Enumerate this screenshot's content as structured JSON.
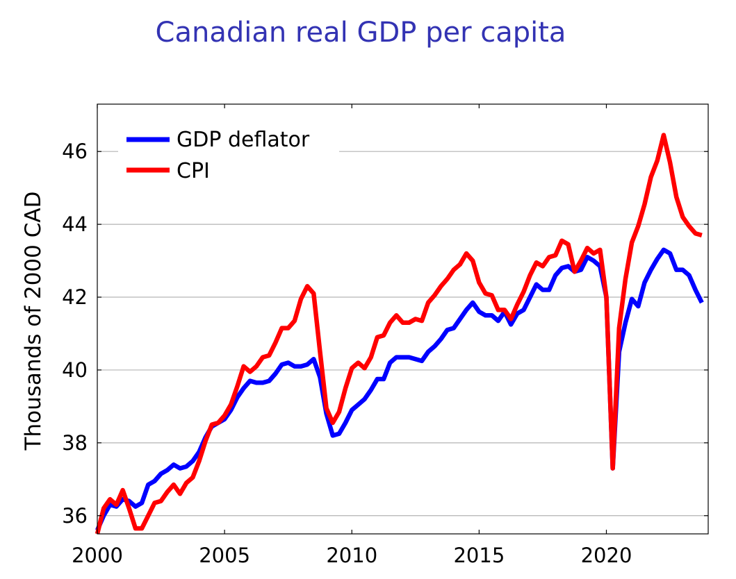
{
  "chart_data": {
    "type": "line",
    "title": "Canadian real GDP per capita",
    "xlabel": "",
    "ylabel": "Thousands of 2000 CAD",
    "xlim": [
      2000,
      2024
    ],
    "ylim": [
      35.5,
      47.3
    ],
    "x_ticks": [
      2000,
      2005,
      2010,
      2015,
      2020
    ],
    "x_tick_labels": [
      "2000",
      "2005",
      "2010",
      "2015",
      "2020"
    ],
    "y_ticks": [
      36,
      38,
      40,
      42,
      44,
      46
    ],
    "y_tick_labels": [
      "36",
      "38",
      "40",
      "42",
      "44",
      "46"
    ],
    "grid": "horizontal",
    "legend_position": "top-left",
    "series": [
      {
        "name": "GDP deflator",
        "color": "#0000ff",
        "points": [
          [
            2000.0,
            35.6
          ],
          [
            2000.25,
            36.0
          ],
          [
            2000.5,
            36.3
          ],
          [
            2000.75,
            36.25
          ],
          [
            2001.0,
            36.45
          ],
          [
            2001.25,
            36.4
          ],
          [
            2001.5,
            36.25
          ],
          [
            2001.75,
            36.35
          ],
          [
            2002.0,
            36.85
          ],
          [
            2002.25,
            36.95
          ],
          [
            2002.5,
            37.15
          ],
          [
            2002.75,
            37.25
          ],
          [
            2003.0,
            37.4
          ],
          [
            2003.25,
            37.3
          ],
          [
            2003.5,
            37.35
          ],
          [
            2003.75,
            37.5
          ],
          [
            2004.0,
            37.75
          ],
          [
            2004.25,
            38.15
          ],
          [
            2004.5,
            38.45
          ],
          [
            2004.75,
            38.55
          ],
          [
            2005.0,
            38.65
          ],
          [
            2005.25,
            38.9
          ],
          [
            2005.5,
            39.25
          ],
          [
            2005.75,
            39.5
          ],
          [
            2006.0,
            39.7
          ],
          [
            2006.25,
            39.65
          ],
          [
            2006.5,
            39.65
          ],
          [
            2006.75,
            39.7
          ],
          [
            2007.0,
            39.9
          ],
          [
            2007.25,
            40.15
          ],
          [
            2007.5,
            40.2
          ],
          [
            2007.75,
            40.1
          ],
          [
            2008.0,
            40.1
          ],
          [
            2008.25,
            40.15
          ],
          [
            2008.5,
            40.3
          ],
          [
            2008.75,
            39.8
          ],
          [
            2009.0,
            38.8
          ],
          [
            2009.25,
            38.2
          ],
          [
            2009.5,
            38.25
          ],
          [
            2009.75,
            38.55
          ],
          [
            2010.0,
            38.9
          ],
          [
            2010.25,
            39.05
          ],
          [
            2010.5,
            39.2
          ],
          [
            2010.75,
            39.45
          ],
          [
            2011.0,
            39.75
          ],
          [
            2011.25,
            39.75
          ],
          [
            2011.5,
            40.2
          ],
          [
            2011.75,
            40.35
          ],
          [
            2012.0,
            40.35
          ],
          [
            2012.25,
            40.35
          ],
          [
            2012.5,
            40.3
          ],
          [
            2012.75,
            40.25
          ],
          [
            2013.0,
            40.5
          ],
          [
            2013.25,
            40.65
          ],
          [
            2013.5,
            40.85
          ],
          [
            2013.75,
            41.1
          ],
          [
            2014.0,
            41.15
          ],
          [
            2014.25,
            41.4
          ],
          [
            2014.5,
            41.65
          ],
          [
            2014.75,
            41.85
          ],
          [
            2015.0,
            41.6
          ],
          [
            2015.25,
            41.5
          ],
          [
            2015.5,
            41.5
          ],
          [
            2015.75,
            41.35
          ],
          [
            2016.0,
            41.6
          ],
          [
            2016.25,
            41.25
          ],
          [
            2016.5,
            41.55
          ],
          [
            2016.75,
            41.65
          ],
          [
            2017.0,
            42.0
          ],
          [
            2017.25,
            42.35
          ],
          [
            2017.5,
            42.2
          ],
          [
            2017.75,
            42.2
          ],
          [
            2018.0,
            42.6
          ],
          [
            2018.25,
            42.8
          ],
          [
            2018.5,
            42.85
          ],
          [
            2018.75,
            42.7
          ],
          [
            2019.0,
            42.75
          ],
          [
            2019.25,
            43.1
          ],
          [
            2019.5,
            43.0
          ],
          [
            2019.75,
            42.85
          ],
          [
            2020.0,
            42.0
          ],
          [
            2020.25,
            37.3
          ],
          [
            2020.5,
            40.5
          ],
          [
            2020.75,
            41.3
          ],
          [
            2021.0,
            41.95
          ],
          [
            2021.25,
            41.75
          ],
          [
            2021.5,
            42.4
          ],
          [
            2021.75,
            42.75
          ],
          [
            2022.0,
            43.05
          ],
          [
            2022.25,
            43.3
          ],
          [
            2022.5,
            43.2
          ],
          [
            2022.75,
            42.75
          ],
          [
            2023.0,
            42.75
          ],
          [
            2023.25,
            42.6
          ],
          [
            2023.5,
            42.2
          ],
          [
            2023.75,
            41.85
          ]
        ]
      },
      {
        "name": "CPI",
        "color": "#ff0000",
        "points": [
          [
            2000.0,
            35.5
          ],
          [
            2000.25,
            36.2
          ],
          [
            2000.5,
            36.45
          ],
          [
            2000.75,
            36.3
          ],
          [
            2001.0,
            36.7
          ],
          [
            2001.25,
            36.2
          ],
          [
            2001.5,
            35.65
          ],
          [
            2001.75,
            35.65
          ],
          [
            2002.0,
            36.0
          ],
          [
            2002.25,
            36.35
          ],
          [
            2002.5,
            36.4
          ],
          [
            2002.75,
            36.65
          ],
          [
            2003.0,
            36.85
          ],
          [
            2003.25,
            36.6
          ],
          [
            2003.5,
            36.9
          ],
          [
            2003.75,
            37.05
          ],
          [
            2004.0,
            37.5
          ],
          [
            2004.25,
            38.05
          ],
          [
            2004.5,
            38.5
          ],
          [
            2004.75,
            38.55
          ],
          [
            2005.0,
            38.75
          ],
          [
            2005.25,
            39.05
          ],
          [
            2005.5,
            39.55
          ],
          [
            2005.75,
            40.1
          ],
          [
            2006.0,
            39.95
          ],
          [
            2006.25,
            40.1
          ],
          [
            2006.5,
            40.35
          ],
          [
            2006.75,
            40.4
          ],
          [
            2007.0,
            40.75
          ],
          [
            2007.25,
            41.15
          ],
          [
            2007.5,
            41.15
          ],
          [
            2007.75,
            41.35
          ],
          [
            2008.0,
            41.95
          ],
          [
            2008.25,
            42.3
          ],
          [
            2008.5,
            42.1
          ],
          [
            2008.75,
            40.5
          ],
          [
            2009.0,
            38.95
          ],
          [
            2009.25,
            38.55
          ],
          [
            2009.5,
            38.85
          ],
          [
            2009.75,
            39.5
          ],
          [
            2010.0,
            40.05
          ],
          [
            2010.25,
            40.2
          ],
          [
            2010.5,
            40.05
          ],
          [
            2010.75,
            40.35
          ],
          [
            2011.0,
            40.9
          ],
          [
            2011.25,
            40.95
          ],
          [
            2011.5,
            41.3
          ],
          [
            2011.75,
            41.5
          ],
          [
            2012.0,
            41.3
          ],
          [
            2012.25,
            41.3
          ],
          [
            2012.5,
            41.4
          ],
          [
            2012.75,
            41.35
          ],
          [
            2013.0,
            41.85
          ],
          [
            2013.25,
            42.05
          ],
          [
            2013.5,
            42.3
          ],
          [
            2013.75,
            42.5
          ],
          [
            2014.0,
            42.75
          ],
          [
            2014.25,
            42.9
          ],
          [
            2014.5,
            43.2
          ],
          [
            2014.75,
            43.0
          ],
          [
            2015.0,
            42.4
          ],
          [
            2015.25,
            42.1
          ],
          [
            2015.5,
            42.05
          ],
          [
            2015.75,
            41.65
          ],
          [
            2016.0,
            41.65
          ],
          [
            2016.25,
            41.4
          ],
          [
            2016.5,
            41.8
          ],
          [
            2016.75,
            42.15
          ],
          [
            2017.0,
            42.6
          ],
          [
            2017.25,
            42.95
          ],
          [
            2017.5,
            42.85
          ],
          [
            2017.75,
            43.1
          ],
          [
            2018.0,
            43.15
          ],
          [
            2018.25,
            43.55
          ],
          [
            2018.5,
            43.45
          ],
          [
            2018.75,
            42.7
          ],
          [
            2019.0,
            43.0
          ],
          [
            2019.25,
            43.35
          ],
          [
            2019.5,
            43.2
          ],
          [
            2019.75,
            43.3
          ],
          [
            2020.0,
            42.0
          ],
          [
            2020.25,
            37.3
          ],
          [
            2020.5,
            41.15
          ],
          [
            2020.75,
            42.5
          ],
          [
            2021.0,
            43.5
          ],
          [
            2021.25,
            43.95
          ],
          [
            2021.5,
            44.55
          ],
          [
            2021.75,
            45.3
          ],
          [
            2022.0,
            45.75
          ],
          [
            2022.25,
            46.45
          ],
          [
            2022.5,
            45.7
          ],
          [
            2022.75,
            44.75
          ],
          [
            2023.0,
            44.2
          ],
          [
            2023.25,
            43.95
          ],
          [
            2023.5,
            43.75
          ],
          [
            2023.75,
            43.7
          ]
        ]
      }
    ]
  }
}
